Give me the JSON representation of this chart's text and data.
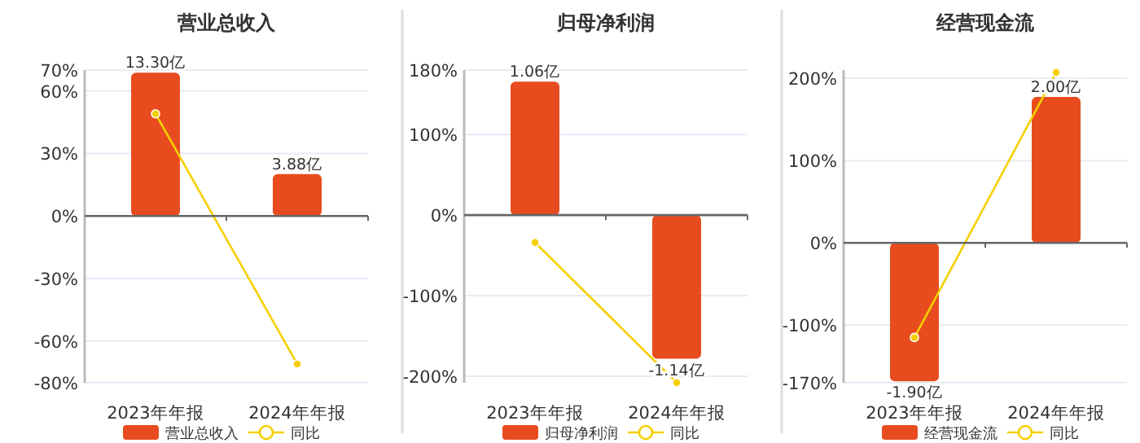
{
  "chart_data": [
    {
      "type": "bar",
      "title": "营业总收入",
      "categories": [
        "2023年年报",
        "2024年年报"
      ],
      "ylim": [
        -80,
        70
      ],
      "yticks": [
        {
          "value": -80,
          "label": "-80%"
        },
        {
          "value": -60,
          "label": "-60%"
        },
        {
          "value": -30,
          "label": "-30%"
        },
        {
          "value": 0,
          "label": "0%"
        },
        {
          "value": 30,
          "label": "30%"
        },
        {
          "value": 60,
          "label": "60%"
        },
        {
          "value": 70,
          "label": "70%"
        }
      ],
      "y2lim": [
        -15.48,
        13.54
      ],
      "grid": "y",
      "legend": "bottom",
      "series": [
        {
          "name": "营业总收入",
          "type": "bar",
          "axis": "y2",
          "color": "#e84c1e",
          "values": [
            13.3,
            3.88
          ],
          "value_labels": [
            "13.30亿",
            "3.88亿"
          ]
        },
        {
          "name": "同比",
          "type": "line",
          "color": "#f5cf00",
          "marker": "circle",
          "values": [
            49,
            -71
          ]
        }
      ]
    },
    {
      "type": "bar",
      "title": "归母净利润",
      "categories": [
        "2023年年报",
        "2024年年报"
      ],
      "ylim": [
        -208,
        180
      ],
      "yticks": [
        {
          "value": -200,
          "label": "-200%"
        },
        {
          "value": -100,
          "label": "-100%"
        },
        {
          "value": 0,
          "label": "0%"
        },
        {
          "value": 100,
          "label": "100%"
        },
        {
          "value": 180,
          "label": "180%"
        }
      ],
      "y2lim": [
        -1.33,
        1.152
      ],
      "grid": "y",
      "legend": "bottom",
      "series": [
        {
          "name": "归母净利润",
          "type": "bar",
          "axis": "y2",
          "color": "#e84c1e",
          "values": [
            1.06,
            -1.14
          ],
          "value_labels": [
            "1.06亿",
            "-1.14亿"
          ]
        },
        {
          "name": "同比",
          "type": "line",
          "color": "#f5cf00",
          "marker": "circle",
          "values": [
            -34,
            -208
          ]
        }
      ]
    },
    {
      "type": "bar",
      "title": "经营现金流",
      "categories": [
        "2023年年报",
        "2024年年报"
      ],
      "ylim": [
        -170,
        210
      ],
      "yticks": [
        {
          "value": -170,
          "label": "-170%"
        },
        {
          "value": -100,
          "label": "-100%"
        },
        {
          "value": 0,
          "label": "0%"
        },
        {
          "value": 100,
          "label": "100%"
        },
        {
          "value": 200,
          "label": "200%"
        }
      ],
      "y2lim": [
        -1.92,
        2.37
      ],
      "grid": "y",
      "legend": "bottom",
      "series": [
        {
          "name": "经营现金流",
          "type": "bar",
          "axis": "y2",
          "color": "#e84c1e",
          "values": [
            -1.9,
            2.0
          ],
          "value_labels": [
            "-1.90亿",
            "2.00亿"
          ]
        },
        {
          "name": "同比",
          "type": "line",
          "color": "#f5cf00",
          "marker": "circle",
          "values": [
            -115,
            207
          ]
        }
      ]
    }
  ]
}
